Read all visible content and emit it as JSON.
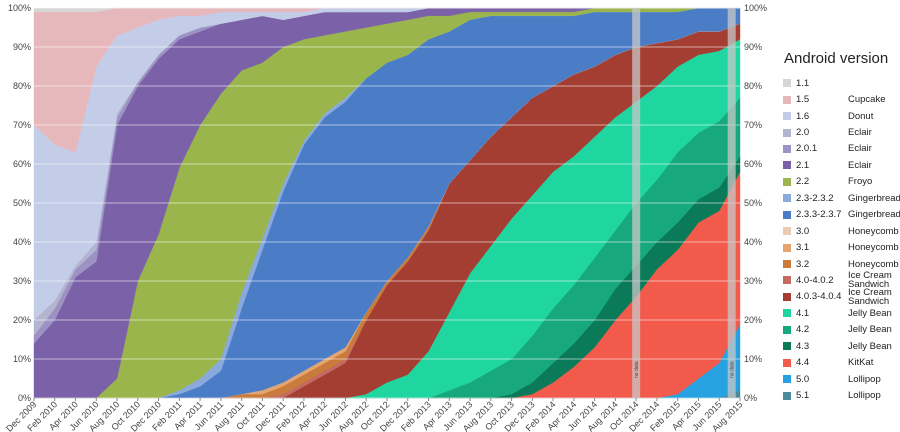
{
  "chart_data": {
    "type": "stacked_area",
    "legend_title": "Android version",
    "annotations": [
      "no data",
      "no data"
    ],
    "categories": [
      "Dec 2009",
      "Feb 2010",
      "Apr 2010",
      "Jun 2010",
      "Aug 2010",
      "Oct 2010",
      "Dec 2010",
      "Feb 2011",
      "Apr 2011",
      "Jun 2011",
      "Aug 2011",
      "Oct 2011",
      "Dec 2011",
      "Feb 2012",
      "Apr 2012",
      "Jun 2012",
      "Aug 2012",
      "Oct 2012",
      "Dec 2012",
      "Feb 2013",
      "Apr 2013",
      "Jun 2013",
      "Aug 2013",
      "Oct 2013",
      "Dec 2013",
      "Feb 2014",
      "Apr 2014",
      "Jun 2014",
      "Aug 2014",
      "Oct 2014",
      "Dec 2014",
      "Feb 2015",
      "Apr 2015",
      "Jun 2015",
      "Aug 2015"
    ],
    "ylim": [
      0,
      100
    ],
    "yticks": [
      {
        "value": 0,
        "label": "0%"
      },
      {
        "value": 10,
        "label": "10%"
      },
      {
        "value": 20,
        "label": "20%"
      },
      {
        "value": 30,
        "label": "30%"
      },
      {
        "value": 40,
        "label": "40%"
      },
      {
        "value": 50,
        "label": "50%"
      },
      {
        "value": 60,
        "label": "60%"
      },
      {
        "value": 70,
        "label": "70%"
      },
      {
        "value": 80,
        "label": "80%"
      },
      {
        "value": 90,
        "label": "90%"
      },
      {
        "value": 100,
        "label": "100%"
      }
    ],
    "grid": true,
    "legend": "right",
    "series": [
      {
        "name": "1.1",
        "codename": null,
        "color": "#d6d6d6",
        "values": [
          1,
          1,
          1,
          1,
          0,
          0,
          0,
          0,
          0,
          0,
          0,
          0,
          0,
          0,
          0,
          0,
          0,
          0,
          0,
          0,
          0,
          0,
          0,
          0,
          0,
          0,
          0,
          0,
          0,
          0,
          0,
          0,
          0,
          0,
          0
        ]
      },
      {
        "name": "1.5",
        "codename": "Cupcake",
        "color": "#e6b8bc",
        "values": [
          29,
          34,
          36,
          14,
          7,
          5,
          3,
          2,
          2,
          1,
          1,
          1,
          1,
          1,
          0,
          0,
          0,
          0,
          0,
          0,
          0,
          0,
          0,
          0,
          0,
          0,
          0,
          0,
          0,
          0,
          0,
          0,
          0,
          0,
          0
        ]
      },
      {
        "name": "1.6",
        "codename": "Donut",
        "color": "#c4cde8",
        "values": [
          50,
          40,
          29,
          45,
          20,
          14,
          9,
          5,
          3,
          3,
          2,
          1,
          2,
          1,
          1,
          1,
          1,
          1,
          1,
          0,
          0,
          0,
          0,
          0,
          0,
          0,
          0,
          0,
          0,
          0,
          0,
          0,
          0,
          0,
          0
        ]
      },
      {
        "name": "2.0",
        "codename": "Eclair",
        "color": "#b3b4cf",
        "values": [
          4,
          2,
          1,
          2,
          1,
          0,
          0,
          0,
          0,
          0,
          0,
          0,
          0,
          0,
          0,
          0,
          0,
          0,
          0,
          0,
          0,
          0,
          0,
          0,
          0,
          0,
          0,
          0,
          0,
          0,
          0,
          0,
          0,
          0,
          0
        ]
      },
      {
        "name": "2.0.1",
        "codename": "Eclair",
        "color": "#9d92c4",
        "values": [
          2,
          3,
          2,
          3,
          2,
          1,
          1,
          1,
          1,
          0,
          0,
          0,
          0,
          0,
          0,
          0,
          0,
          0,
          0,
          0,
          0,
          0,
          0,
          0,
          0,
          0,
          0,
          0,
          0,
          0,
          0,
          0,
          0,
          0,
          0
        ]
      },
      {
        "name": "2.1",
        "codename": "Eclair",
        "color": "#7b62a8",
        "values": [
          14,
          20,
          31,
          35,
          65,
          50,
          45,
          33,
          24,
          18,
          13,
          12,
          7,
          6,
          6,
          5,
          4,
          3,
          2,
          2,
          2,
          1,
          1,
          1,
          1,
          1,
          1,
          0,
          0,
          0,
          0,
          0,
          0,
          0,
          0
        ]
      },
      {
        "name": "2.2",
        "codename": "Froyo",
        "color": "#9bb54d",
        "values": [
          0,
          0,
          0,
          0,
          5,
          30,
          42,
          57,
          65,
          68,
          57,
          45,
          35,
          26,
          20,
          17,
          13,
          10,
          9,
          6,
          4,
          2,
          1,
          1,
          1,
          1,
          1,
          1,
          1,
          1,
          1,
          1,
          0,
          0,
          0
        ]
      },
      {
        "name": "2.3-2.3.2",
        "codename": "Gingerbread",
        "color": "#8aa9dc",
        "values": [
          0,
          0,
          0,
          0,
          0,
          0,
          0,
          1,
          2,
          3,
          4,
          3,
          2,
          1,
          1,
          1,
          0,
          0,
          0,
          0,
          0,
          0,
          0,
          0,
          0,
          0,
          0,
          0,
          0,
          0,
          0,
          0,
          0,
          0,
          0
        ]
      },
      {
        "name": "2.3.3-2.3.7",
        "codename": "Gingerbread",
        "color": "#4b7cc6",
        "values": [
          0,
          0,
          0,
          0,
          0,
          0,
          0,
          1,
          3,
          7,
          22,
          36,
          49,
          58,
          62,
          63,
          60,
          56,
          52,
          48,
          39,
          36,
          31,
          26,
          21,
          18,
          15,
          14,
          11,
          9,
          8,
          7,
          6,
          6,
          4
        ]
      },
      {
        "name": "3.0",
        "codename": "Honeycomb",
        "color": "#ebcbb2",
        "values": [
          0,
          0,
          0,
          0,
          0,
          0,
          0,
          0,
          0,
          0,
          0,
          0,
          0,
          0,
          0,
          0,
          0,
          0,
          0,
          0,
          0,
          0,
          0,
          0,
          0,
          0,
          0,
          0,
          0,
          0,
          0,
          0,
          0,
          0,
          0
        ]
      },
      {
        "name": "3.1",
        "codename": "Honeycomb",
        "color": "#e3a46f",
        "values": [
          0,
          0,
          0,
          0,
          0,
          0,
          0,
          0,
          0,
          0,
          0,
          1,
          1,
          1,
          1,
          1,
          0,
          0,
          0,
          0,
          0,
          0,
          0,
          0,
          0,
          0,
          0,
          0,
          0,
          0,
          0,
          0,
          0,
          0,
          0
        ]
      },
      {
        "name": "3.2",
        "codename": "Honeycomb",
        "color": "#c87b3b",
        "values": [
          0,
          0,
          0,
          0,
          0,
          0,
          0,
          0,
          0,
          0,
          1,
          1,
          2,
          2,
          2,
          2,
          2,
          1,
          1,
          1,
          0,
          0,
          0,
          0,
          0,
          0,
          0,
          0,
          0,
          0,
          0,
          0,
          0,
          0,
          0
        ]
      },
      {
        "name": "4.0-4.0.2",
        "codename": "Ice Cream Sandwich",
        "color": "#c46a63",
        "values": [
          0,
          0,
          0,
          0,
          0,
          0,
          0,
          0,
          0,
          0,
          0,
          0,
          1,
          1,
          1,
          1,
          0,
          0,
          0,
          0,
          0,
          0,
          0,
          0,
          0,
          0,
          0,
          0,
          0,
          0,
          0,
          0,
          0,
          0,
          0
        ]
      },
      {
        "name": "4.0.3-4.0.4",
        "codename": "Ice Cream Sandwich",
        "color": "#a53e32",
        "values": [
          0,
          0,
          0,
          0,
          0,
          0,
          0,
          0,
          0,
          0,
          0,
          0,
          0,
          3,
          6,
          9,
          19,
          25,
          29,
          31,
          33,
          29,
          28,
          26,
          25,
          22,
          21,
          18,
          16,
          14,
          11,
          7,
          6,
          5,
          4
        ]
      },
      {
        "name": "4.1",
        "codename": "Jelly Bean",
        "color": "#1fd6a1",
        "values": [
          0,
          0,
          0,
          0,
          0,
          0,
          0,
          0,
          0,
          0,
          0,
          0,
          0,
          0,
          0,
          0,
          1,
          4,
          6,
          12,
          20,
          28,
          32,
          36,
          36,
          35,
          33,
          31,
          29,
          26,
          24,
          22,
          20,
          18,
          15
        ]
      },
      {
        "name": "4.2",
        "codename": "Jelly Bean",
        "color": "#17a97d",
        "values": [
          0,
          0,
          0,
          0,
          0,
          0,
          0,
          0,
          0,
          0,
          0,
          0,
          0,
          0,
          0,
          0,
          0,
          0,
          0,
          0,
          2,
          4,
          7,
          9,
          12,
          14,
          15,
          16,
          15,
          16,
          16,
          18,
          17,
          17,
          15
        ]
      },
      {
        "name": "4.3",
        "codename": "Jelly Bean",
        "color": "#0b7a58",
        "values": [
          0,
          0,
          0,
          0,
          0,
          0,
          0,
          0,
          0,
          0,
          0,
          0,
          0,
          0,
          0,
          0,
          0,
          0,
          0,
          0,
          0,
          0,
          0,
          1,
          3,
          5,
          6,
          7,
          8,
          8,
          7,
          7,
          6,
          6,
          4
        ]
      },
      {
        "name": "4.4",
        "codename": "KitKat",
        "color": "#f25a4b",
        "values": [
          0,
          0,
          0,
          0,
          0,
          0,
          0,
          0,
          0,
          0,
          0,
          0,
          0,
          0,
          0,
          0,
          0,
          0,
          0,
          0,
          0,
          0,
          0,
          0,
          1,
          4,
          8,
          13,
          20,
          26,
          33,
          37,
          40,
          39,
          39
        ]
      },
      {
        "name": "5.0",
        "codename": "Lollipop",
        "color": "#27a1df",
        "values": [
          0,
          0,
          0,
          0,
          0,
          0,
          0,
          0,
          0,
          0,
          0,
          0,
          0,
          0,
          0,
          0,
          0,
          0,
          0,
          0,
          0,
          0,
          0,
          0,
          0,
          0,
          0,
          0,
          0,
          0,
          0,
          1,
          5,
          9,
          17
        ]
      },
      {
        "name": "5.1",
        "codename": "Lollipop",
        "color": "#4d8b9b",
        "values": [
          0,
          0,
          0,
          0,
          0,
          0,
          0,
          0,
          0,
          0,
          0,
          0,
          0,
          0,
          0,
          0,
          0,
          0,
          0,
          0,
          0,
          0,
          0,
          0,
          0,
          0,
          0,
          0,
          0,
          0,
          0,
          0,
          0,
          0,
          2
        ]
      }
    ]
  }
}
